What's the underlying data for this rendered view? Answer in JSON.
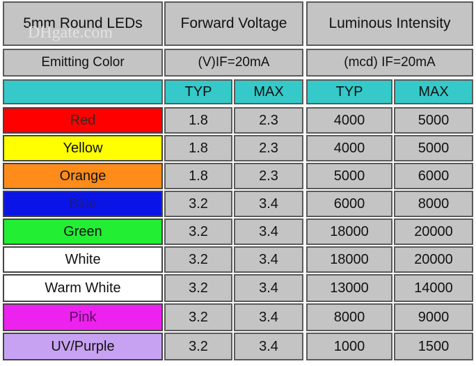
{
  "header": {
    "title": "5mm Round LEDs",
    "forward_voltage": "Forward Voltage",
    "luminous_intensity": "Luminous Intensity"
  },
  "subheader": {
    "emitting_color": "Emitting Color",
    "voltage_unit": "(V)IF=20mA",
    "intensity_unit": "(mcd) IF=20mA"
  },
  "columns": {
    "typ_v": "TYP",
    "max_v": "MAX",
    "typ_i": "TYP",
    "max_i": "MAX"
  },
  "rows": [
    {
      "color": "Red",
      "swatch": "#ff0000",
      "typ_v": "1.8",
      "max_v": "2.3",
      "typ_i": "4000",
      "max_i": "5000"
    },
    {
      "color": "Yellow",
      "swatch": "#ffff00",
      "typ_v": "1.8",
      "max_v": "2.3",
      "typ_i": "4000",
      "max_i": "5000"
    },
    {
      "color": "Orange",
      "swatch": "#ff8c1a",
      "typ_v": "1.8",
      "max_v": "2.3",
      "typ_i": "5000",
      "max_i": "6000"
    },
    {
      "color": "Blue",
      "swatch": "#0a14e6",
      "typ_v": "3.2",
      "max_v": "3.4",
      "typ_i": "6000",
      "max_i": "8000"
    },
    {
      "color": "Green",
      "swatch": "#22ee33",
      "typ_v": "3.2",
      "max_v": "3.4",
      "typ_i": "18000",
      "max_i": "20000"
    },
    {
      "color": "White",
      "swatch": "#ffffff",
      "typ_v": "3.2",
      "max_v": "3.4",
      "typ_i": "18000",
      "max_i": "20000"
    },
    {
      "color": "Warm White",
      "swatch": "#ffffff",
      "typ_v": "3.2",
      "max_v": "3.4",
      "typ_i": "13000",
      "max_i": "14000"
    },
    {
      "color": "Pink",
      "swatch": "#ee22ee",
      "typ_v": "3.2",
      "max_v": "3.4",
      "typ_i": "8000",
      "max_i": "9000"
    },
    {
      "color": "UV/Purple",
      "swatch": "#c8a2f2",
      "typ_v": "3.2",
      "max_v": "3.4",
      "typ_i": "1000",
      "max_i": "1500"
    }
  ],
  "watermark": {
    "logo": "DHgate.com"
  },
  "colors": {
    "header_bg": "#c4c4c4",
    "teal": "#35c9c9",
    "border": "#5a5a5a"
  }
}
